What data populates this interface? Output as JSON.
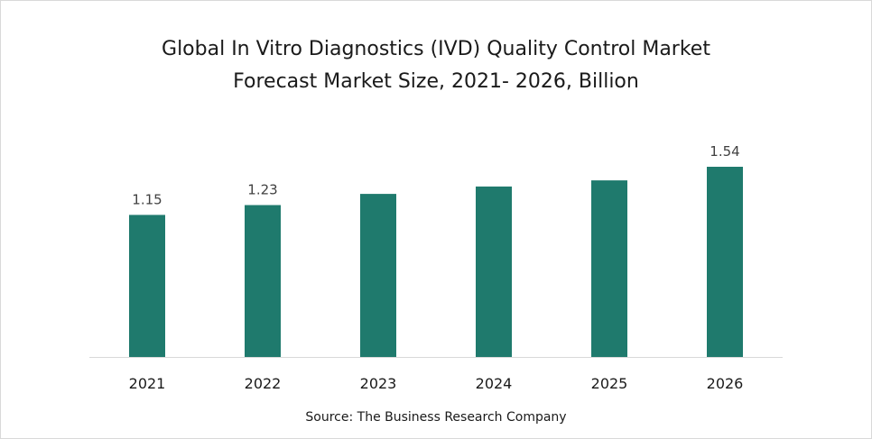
{
  "chart_data": {
    "type": "bar",
    "title": "Global In Vitro Diagnostics (IVD) Quality Control Market Forecast Market Size, 2021- 2026, Billion",
    "title_lines": [
      "Global In Vitro Diagnostics (IVD) Quality Control Market",
      "Forecast Market Size, 2021- 2026, Billion"
    ],
    "categories": [
      "2021",
      "2022",
      "2023",
      "2024",
      "2025",
      "2026"
    ],
    "values": [
      1.15,
      1.23,
      1.32,
      1.38,
      1.43,
      1.54
    ],
    "data_labels": [
      "1.15",
      "1.23",
      "",
      "",
      "",
      "1.54"
    ],
    "ylim": [
      0,
      1.54
    ],
    "grid": false,
    "legend": "none",
    "bar_color": "#1f7a6d",
    "source": "Source: The Business Research Company"
  }
}
